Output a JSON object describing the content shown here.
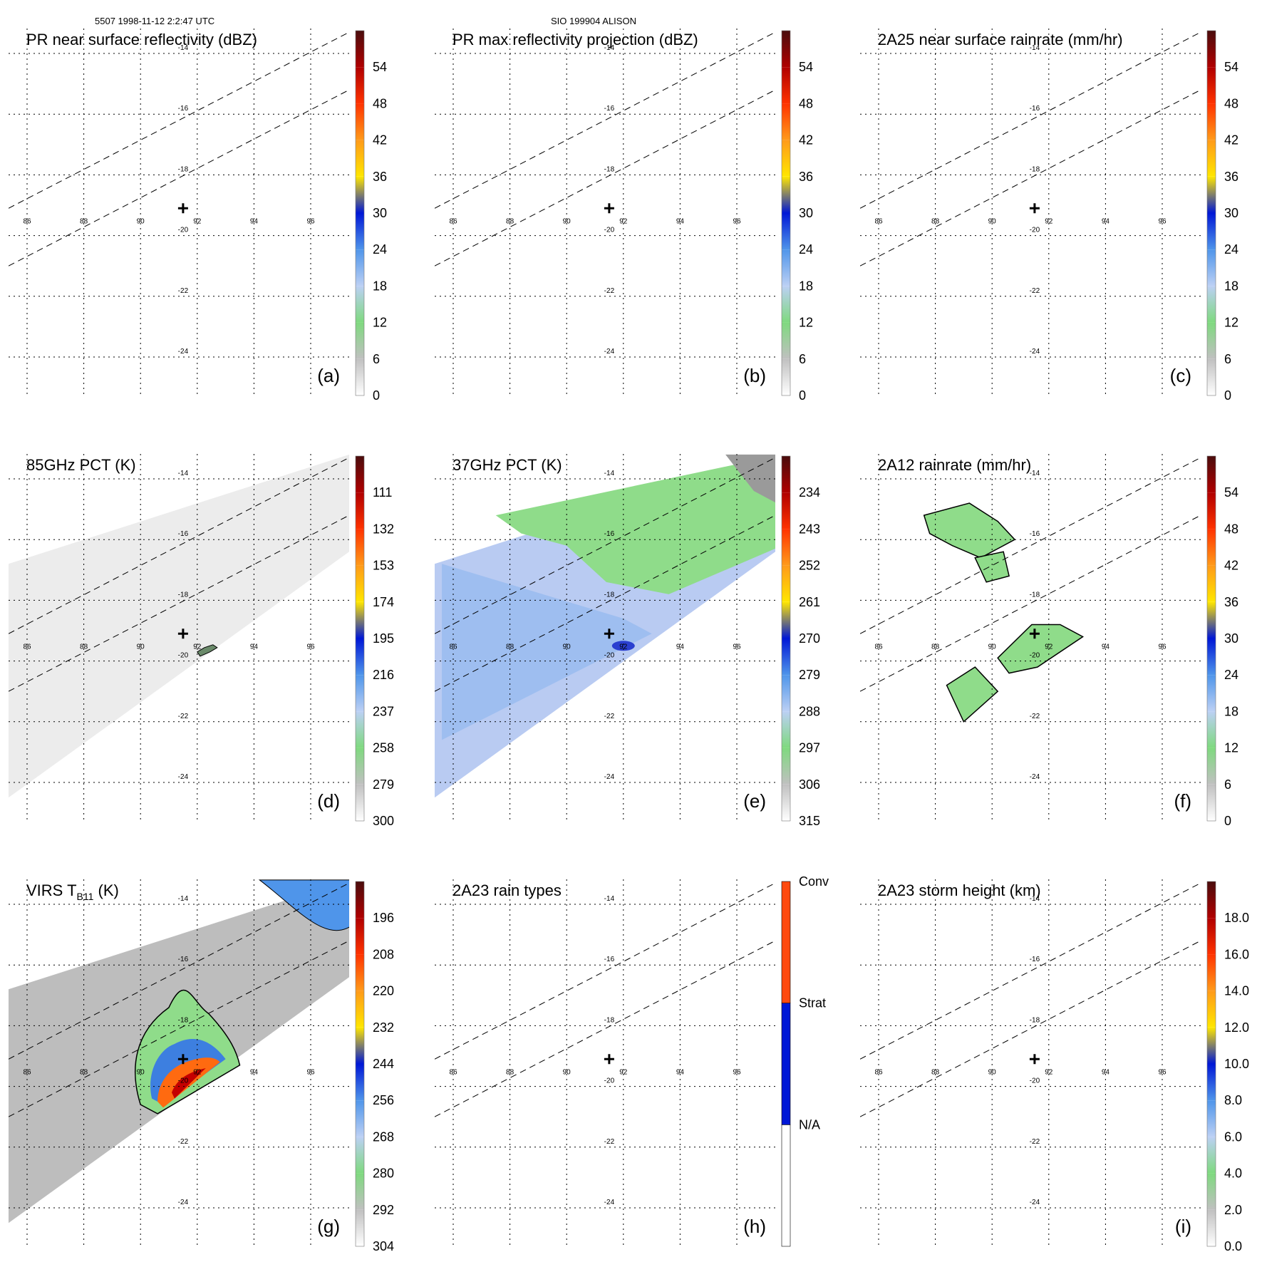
{
  "header": {
    "left": "5507 1998-11-12 2:2:47 UTC",
    "center": "SIO 199904 ALISON"
  },
  "chart_data": [
    {
      "type": "heatmap",
      "panel": "a",
      "title": "PR near surface reflectivity (dBZ)",
      "colorbar_labels": [
        "0",
        "6",
        "12",
        "18",
        "24",
        "30",
        "36",
        "42",
        "48",
        "54"
      ],
      "lon_ticks": [
        "86",
        "88",
        "90",
        "92",
        "94",
        "96"
      ],
      "lat_ticks": [
        "-14",
        "-16",
        "-18",
        "-20",
        "-22",
        "-24"
      ],
      "storm_center": {
        "lon": 91.5,
        "lat": -19.1
      },
      "swath": "none"
    },
    {
      "type": "heatmap",
      "panel": "b",
      "title": "PR max reflectivity projection (dBZ)",
      "colorbar_labels": [
        "0",
        "6",
        "12",
        "18",
        "24",
        "30",
        "36",
        "42",
        "48",
        "54"
      ],
      "lon_ticks": [
        "86",
        "88",
        "90",
        "92",
        "94",
        "96"
      ],
      "lat_ticks": [
        "-14",
        "-16",
        "-18",
        "-20",
        "-22",
        "-24"
      ],
      "storm_center": {
        "lon": 91.5,
        "lat": -19.1
      },
      "swath": "none"
    },
    {
      "type": "heatmap",
      "panel": "c",
      "title": "2A25 near surface rainrate (mm/hr)",
      "colorbar_labels": [
        "0",
        "6",
        "12",
        "18",
        "24",
        "30",
        "36",
        "42",
        "48",
        "54"
      ],
      "lon_ticks": [
        "86",
        "88",
        "90",
        "92",
        "94",
        "96"
      ],
      "lat_ticks": [
        "-14",
        "-16",
        "-18",
        "-20",
        "-22",
        "-24"
      ],
      "storm_center": {
        "lon": 91.5,
        "lat": -19.1
      },
      "swath": "none"
    },
    {
      "type": "heatmap",
      "panel": "d",
      "title": "85GHz PCT (K)",
      "colorbar_labels": [
        "300",
        "279",
        "258",
        "237",
        "216",
        "195",
        "174",
        "153",
        "132",
        "111"
      ],
      "lon_ticks": [
        "86",
        "88",
        "90",
        "92",
        "94",
        "96"
      ],
      "lat_ticks": [
        "-14",
        "-16",
        "-18",
        "-20",
        "-22",
        "-24"
      ],
      "storm_center": {
        "lon": 91.5,
        "lat": -19.1
      },
      "swath": "light-gray"
    },
    {
      "type": "heatmap",
      "panel": "e",
      "title": "37GHz PCT (K)",
      "colorbar_labels": [
        "315",
        "306",
        "297",
        "288",
        "279",
        "270",
        "261",
        "252",
        "243",
        "234"
      ],
      "lon_ticks": [
        "86",
        "88",
        "90",
        "92",
        "94",
        "96"
      ],
      "lat_ticks": [
        "-14",
        "-16",
        "-18",
        "-20",
        "-22",
        "-24"
      ],
      "storm_center": {
        "lon": 91.5,
        "lat": -19.1
      },
      "swath": "blue-green"
    },
    {
      "type": "heatmap",
      "panel": "f",
      "title": "2A12 rainrate (mm/hr)",
      "colorbar_labels": [
        "0",
        "6",
        "12",
        "18",
        "24",
        "30",
        "36",
        "42",
        "48",
        "54"
      ],
      "lon_ticks": [
        "86",
        "88",
        "90",
        "92",
        "94",
        "96"
      ],
      "lat_ticks": [
        "-14",
        "-16",
        "-18",
        "-20",
        "-22",
        "-24"
      ],
      "storm_center": {
        "lon": 91.5,
        "lat": -19.1
      },
      "swath": "patches"
    },
    {
      "type": "heatmap",
      "panel": "g",
      "title": "VIRS T",
      "title_sub": "B11",
      "title_suffix": " (K)",
      "colorbar_labels": [
        "304",
        "292",
        "280",
        "268",
        "256",
        "244",
        "232",
        "220",
        "208",
        "196"
      ],
      "lon_ticks": [
        "86",
        "88",
        "90",
        "92",
        "94",
        "96"
      ],
      "lat_ticks": [
        "-14",
        "-16",
        "-18",
        "-20",
        "-22",
        "-24"
      ],
      "storm_center": {
        "lon": 91.5,
        "lat": -19.1
      },
      "swath": "ir"
    },
    {
      "type": "heatmap",
      "panel": "h",
      "title": "2A23 rain types",
      "colorbar_labels": [
        "N/A",
        "Strat",
        "Conv"
      ],
      "lon_ticks": [
        "86",
        "88",
        "90",
        "92",
        "94",
        "96"
      ],
      "lat_ticks": [
        "-14",
        "-16",
        "-18",
        "-20",
        "-22",
        "-24"
      ],
      "storm_center": {
        "lon": 91.5,
        "lat": -19.1
      },
      "swath": "none"
    },
    {
      "type": "heatmap",
      "panel": "i",
      "title": "2A23 storm height (km)",
      "colorbar_labels": [
        "0.0",
        "2.0",
        "4.0",
        "6.0",
        "8.0",
        "10.0",
        "12.0",
        "14.0",
        "16.0",
        "18.0"
      ],
      "lon_ticks": [
        "86",
        "88",
        "90",
        "92",
        "94",
        "96"
      ],
      "lat_ticks": [
        "-14",
        "-16",
        "-18",
        "-20",
        "-22",
        "-24"
      ],
      "storm_center": {
        "lon": 91.5,
        "lat": -19.1
      },
      "swath": "none"
    }
  ],
  "panel_labels": [
    "(a)",
    "(b)",
    "(c)",
    "(d)",
    "(e)",
    "(f)",
    "(g)",
    "(h)",
    "(i)"
  ],
  "colors": {
    "scale10": [
      "#ffffff",
      "#c0c0c0",
      "#7fd97f",
      "#bcd0f4",
      "#4f95ea",
      "#0017d6",
      "#ffe600",
      "#ff9a1a",
      "#ff3300",
      "#b00000",
      "#4a0d0d"
    ],
    "raintype": [
      "#ffffff",
      "#0017d6",
      "#ff4a0f"
    ],
    "gray_bg": "#e9e9e9",
    "ir_bg": "#bdbdbd",
    "green": "#8fdc8a",
    "blue_pct": "#9bbcf0"
  }
}
